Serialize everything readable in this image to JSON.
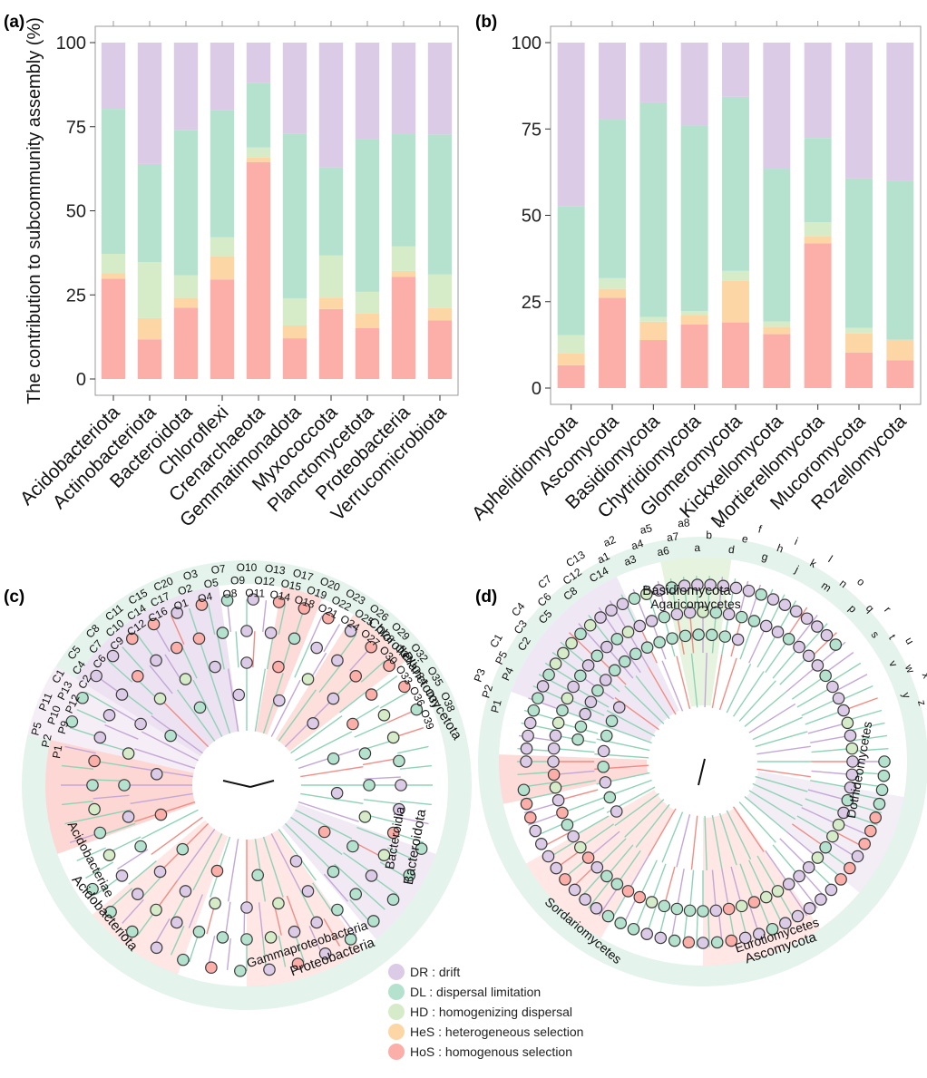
{
  "panels": {
    "a": "(a)",
    "b": "(b)",
    "c": "(c)",
    "d": "(d)"
  },
  "colors": {
    "DR": "#dccbe6",
    "DL": "#b5e2cf",
    "HD": "#d6ecc9",
    "HeS": "#fdd6a6",
    "HoS": "#fbafa8",
    "node_stroke": "#3a3a3a"
  },
  "chart_data": [
    {
      "type": "bar",
      "stacked": true,
      "panel": "(a)",
      "ylabel": "The contribution to subcommunity assembly (%)",
      "xlabel": "",
      "ylim": [
        0,
        100
      ],
      "yticks": [
        "0",
        "25",
        "50",
        "75",
        "100"
      ],
      "categories": [
        "Acidobacteriota",
        "Actinobacteriota",
        "Bacteroidota",
        "Chloroflexi",
        "Crenarchaeota",
        "Gemmatimonadota",
        "Myxococcota",
        "Planctomycetota",
        "Proteobacteria",
        "Verrucomicrobiota"
      ],
      "series": [
        {
          "name": "HoS",
          "values": [
            29.8,
            11.8,
            21.2,
            29.6,
            64.5,
            12.1,
            20.8,
            15.1,
            30.4,
            17.4
          ]
        },
        {
          "name": "HeS",
          "values": [
            1.6,
            6.3,
            2.9,
            6.9,
            1.3,
            3.8,
            3.4,
            4.4,
            1.7,
            3.7
          ]
        },
        {
          "name": "HD",
          "values": [
            5.8,
            16.6,
            6.7,
            5.6,
            3.0,
            8.1,
            12.5,
            6.4,
            7.3,
            10.0
          ]
        },
        {
          "name": "DL",
          "values": [
            43.1,
            29.2,
            43.1,
            37.9,
            19.3,
            49.0,
            26.2,
            45.5,
            33.5,
            41.6
          ]
        },
        {
          "name": "DR",
          "values": [
            19.7,
            36.1,
            26.1,
            20.0,
            11.9,
            27.0,
            37.1,
            28.6,
            27.1,
            27.3
          ]
        }
      ]
    },
    {
      "type": "bar",
      "stacked": true,
      "panel": "(b)",
      "ylim": [
        0,
        100
      ],
      "yticks": [
        "0",
        "25",
        "50",
        "75",
        "100"
      ],
      "categories": [
        "Aphelidiomycota",
        "Ascomycota",
        "Basidiomycota",
        "Chytridiomycota",
        "Glomeromycota",
        "Kickxellomycota",
        "Mortierellomycota",
        "Mucoromycota",
        "Rozellomycota"
      ],
      "series": [
        {
          "name": "HoS",
          "values": [
            6.6,
            26.1,
            13.9,
            18.4,
            19.0,
            15.6,
            41.9,
            10.3,
            8.0
          ]
        },
        {
          "name": "HeS",
          "values": [
            3.4,
            2.6,
            5.3,
            2.6,
            12.0,
            2.1,
            2.1,
            5.5,
            6.0
          ]
        },
        {
          "name": "HD",
          "values": [
            5.3,
            3.1,
            1.4,
            1.3,
            2.9,
            1.6,
            4.0,
            1.6,
            0.0
          ]
        },
        {
          "name": "DL",
          "values": [
            37.4,
            46.0,
            62.1,
            53.7,
            50.4,
            44.2,
            24.4,
            43.3,
            46.0
          ]
        },
        {
          "name": "DR",
          "values": [
            47.3,
            22.2,
            17.3,
            24.0,
            15.7,
            36.5,
            27.6,
            39.3,
            40.0
          ]
        }
      ]
    }
  ],
  "legend": [
    {
      "key": "DR",
      "label": "DR : drift"
    },
    {
      "key": "DL",
      "label": "DL : dispersal limitation"
    },
    {
      "key": "HD",
      "label": "HD : homogenizing dispersal"
    },
    {
      "key": "HeS",
      "label": "HeS : heterogeneous selection"
    },
    {
      "key": "HoS",
      "label": "HoS : homogenous selection"
    }
  ],
  "tree_c": {
    "outer_labels": [
      "Chloroflexi",
      "Planctomycetota",
      "Bacteroidota",
      "Proteobacteria",
      "Acidobacteriota"
    ],
    "inner_labels": [
      "Bacteroidia",
      "Gammaproteobacteria",
      "Acidobacteriae"
    ],
    "node_labels": [
      "P1",
      "P2",
      "P5",
      "P9",
      "P10",
      "P11",
      "P12",
      "P13",
      "C1",
      "C2",
      "C4",
      "C5",
      "C6",
      "C7",
      "C8",
      "C9",
      "C10",
      "C11",
      "C12",
      "C14",
      "C15",
      "C16",
      "C17",
      "C20",
      "O1",
      "O2",
      "O3",
      "O4",
      "O5",
      "O7",
      "O8",
      "O9",
      "O10",
      "O11",
      "O12",
      "O13",
      "O14",
      "O15",
      "O17",
      "O18",
      "O19",
      "O20",
      "O21",
      "O22",
      "O23",
      "O24",
      "O25",
      "O26",
      "O27",
      "O28",
      "O29",
      "O30",
      "O31",
      "O32",
      "O33",
      "O34",
      "O35",
      "O36",
      "O37",
      "O38",
      "O39"
    ]
  },
  "tree_d": {
    "outer_labels": [
      "Basidiomycota",
      "Ascomycota"
    ],
    "inner_labels": [
      "Agaricomycetes",
      "Dothideomycetes",
      "Eurotiomycetes",
      "Sordariomycetes"
    ],
    "node_labels": [
      "P1",
      "P2",
      "P3",
      "P4",
      "P5",
      "C1",
      "C2",
      "C3",
      "C4",
      "C5",
      "C6",
      "C7",
      "C8",
      "C12",
      "C13",
      "C14",
      "a1",
      "a2",
      "a3",
      "a4",
      "a5",
      "a6",
      "a7",
      "a8",
      "a",
      "b",
      "c",
      "d",
      "e",
      "f",
      "g",
      "h",
      "i",
      "j",
      "k",
      "l",
      "m",
      "n",
      "o",
      "p",
      "q",
      "r",
      "s",
      "t",
      "u",
      "v",
      "w",
      "x",
      "y",
      "z"
    ]
  }
}
